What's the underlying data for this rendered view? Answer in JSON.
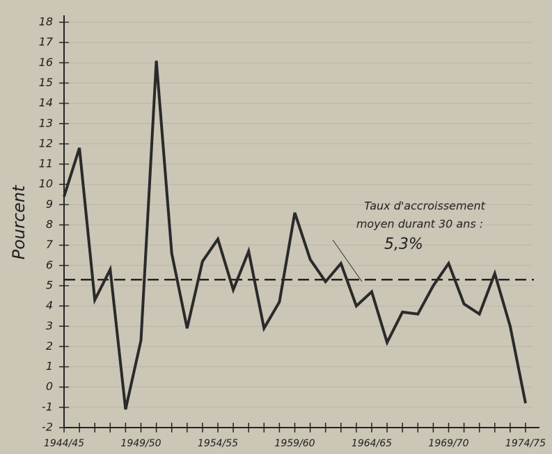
{
  "chart_data": {
    "type": "line",
    "y_label": "Pourcent",
    "categories": [
      "1944/45",
      null,
      null,
      null,
      null,
      "1949/50",
      null,
      null,
      null,
      null,
      "1954/55",
      null,
      null,
      null,
      null,
      "1959/60",
      null,
      null,
      null,
      null,
      "1964/65",
      null,
      null,
      null,
      null,
      "1969/70",
      null,
      null,
      null,
      null,
      "1974/75"
    ],
    "values": [
      9.4,
      11.8,
      4.3,
      5.8,
      -1.1,
      2.3,
      16.1,
      6.6,
      2.9,
      6.2,
      7.3,
      4.8,
      6.7,
      2.9,
      4.2,
      8.6,
      6.3,
      5.2,
      6.1,
      4.0,
      4.7,
      2.2,
      3.7,
      3.6,
      5.0,
      6.1,
      4.1,
      3.6,
      5.6,
      3.0,
      -0.8
    ],
    "color": "#2a2a2a",
    "ylim": [
      -2,
      18
    ],
    "yticks": [
      -2,
      -1,
      0,
      1,
      2,
      3,
      4,
      5,
      6,
      7,
      8,
      9,
      10,
      11,
      12,
      13,
      14,
      15,
      16,
      17,
      18
    ],
    "grid": true,
    "average": {
      "value": 5.3,
      "label": "5,3%"
    },
    "annotation": [
      "Taux d'accroissement",
      "moyen durant 30 ans :"
    ]
  }
}
